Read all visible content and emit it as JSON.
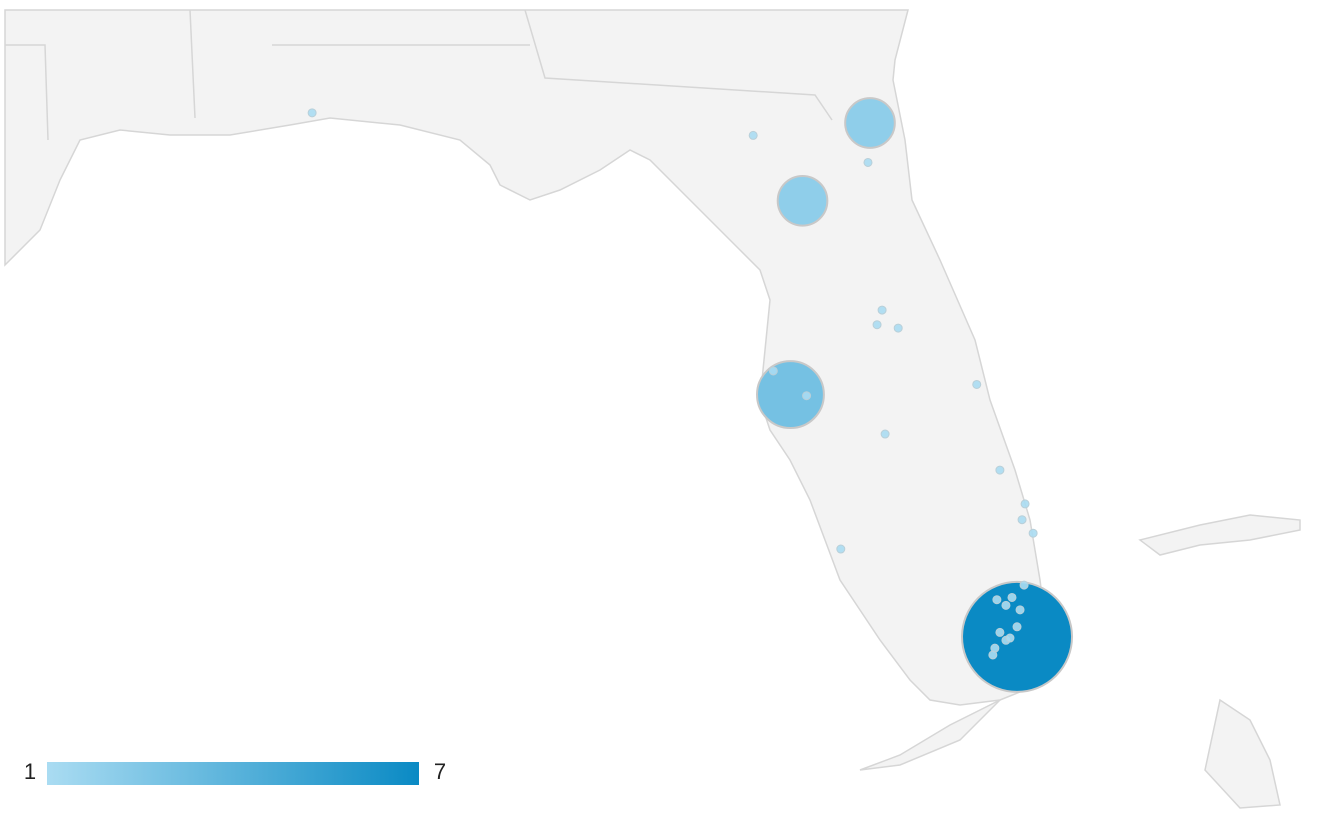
{
  "chart_data": {
    "type": "geo-bubble",
    "color_scale": {
      "min": 1,
      "max": 7,
      "colors": [
        "#aadcf2",
        "#0a8ac4"
      ]
    },
    "points": [
      {
        "lon": -81.66,
        "lat": 30.33,
        "value": 2
      },
      {
        "lon": -82.33,
        "lat": 29.64,
        "value": 2
      },
      {
        "lon": -82.45,
        "lat": 27.92,
        "value": 3
      },
      {
        "lon": -80.2,
        "lat": 25.77,
        "value": 7
      },
      {
        "lon": -87.2,
        "lat": 30.42,
        "value": 1
      },
      {
        "lon": -82.82,
        "lat": 30.22,
        "value": 1
      },
      {
        "lon": -81.68,
        "lat": 29.98,
        "value": 1
      },
      {
        "lon": -81.54,
        "lat": 28.67,
        "value": 1
      },
      {
        "lon": -81.59,
        "lat": 28.54,
        "value": 1
      },
      {
        "lon": -81.38,
        "lat": 28.51,
        "value": 1
      },
      {
        "lon": -80.6,
        "lat": 28.01,
        "value": 1
      },
      {
        "lon": -82.62,
        "lat": 28.13,
        "value": 1
      },
      {
        "lon": -82.29,
        "lat": 27.91,
        "value": 1
      },
      {
        "lon": -81.51,
        "lat": 27.57,
        "value": 1
      },
      {
        "lon": -80.37,
        "lat": 27.25,
        "value": 1
      },
      {
        "lon": -80.12,
        "lat": 26.95,
        "value": 1
      },
      {
        "lon": -80.15,
        "lat": 26.81,
        "value": 1
      },
      {
        "lon": -80.04,
        "lat": 26.69,
        "value": 1
      },
      {
        "lon": -81.95,
        "lat": 26.55,
        "value": 1
      },
      {
        "lon": -80.13,
        "lat": 26.23,
        "value": 1
      },
      {
        "lon": -80.4,
        "lat": 26.1,
        "value": 1
      },
      {
        "lon": -80.25,
        "lat": 26.12,
        "value": 1
      },
      {
        "lon": -80.31,
        "lat": 26.05,
        "value": 1
      },
      {
        "lon": -80.17,
        "lat": 26.01,
        "value": 1
      },
      {
        "lon": -80.2,
        "lat": 25.86,
        "value": 1
      },
      {
        "lon": -80.37,
        "lat": 25.81,
        "value": 1
      },
      {
        "lon": -80.31,
        "lat": 25.74,
        "value": 1
      },
      {
        "lon": -80.27,
        "lat": 25.76,
        "value": 1
      },
      {
        "lon": -80.42,
        "lat": 25.67,
        "value": 1
      },
      {
        "lon": -80.44,
        "lat": 25.61,
        "value": 1
      }
    ]
  }
}
